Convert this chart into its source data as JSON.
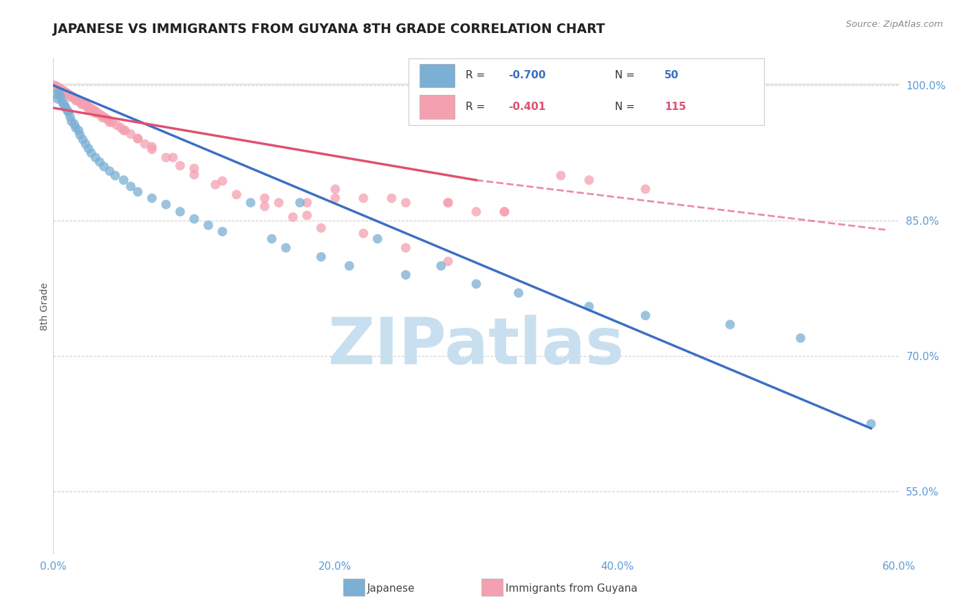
{
  "title": "JAPANESE VS IMMIGRANTS FROM GUYANA 8TH GRADE CORRELATION CHART",
  "source": "Source: ZipAtlas.com",
  "ylabel": "8th Grade",
  "xlim": [
    0.0,
    0.6
  ],
  "ylim": [
    0.48,
    1.03
  ],
  "yticks_right": [
    1.0,
    0.85,
    0.7,
    0.55
  ],
  "xticks": [
    0.0,
    0.2,
    0.4,
    0.6
  ],
  "blue_R": "-0.700",
  "blue_N": "50",
  "pink_R": "-0.401",
  "pink_N": "115",
  "blue_color": "#7bafd4",
  "pink_color": "#f4a0b0",
  "blue_line_color": "#3a6fc4",
  "pink_line_color": "#e05070",
  "watermark": "ZIPatlas",
  "watermark_color": "#c8dff0",
  "blue_line_x0": 0.0,
  "blue_line_y0": 1.0,
  "blue_line_x1": 0.58,
  "blue_line_y1": 0.62,
  "pink_line_solid_x0": 0.0,
  "pink_line_solid_y0": 0.975,
  "pink_line_solid_x1": 0.3,
  "pink_line_solid_y1": 0.895,
  "pink_line_dash_x0": 0.3,
  "pink_line_dash_y0": 0.895,
  "pink_line_dash_x1": 0.59,
  "pink_line_dash_y1": 0.84,
  "blue_scatter_x": [
    0.002,
    0.003,
    0.004,
    0.005,
    0.006,
    0.007,
    0.008,
    0.009,
    0.01,
    0.011,
    0.012,
    0.013,
    0.015,
    0.016,
    0.018,
    0.019,
    0.021,
    0.023,
    0.025,
    0.027,
    0.03,
    0.033,
    0.036,
    0.04,
    0.044,
    0.05,
    0.055,
    0.06,
    0.07,
    0.08,
    0.09,
    0.1,
    0.11,
    0.12,
    0.14,
    0.155,
    0.165,
    0.175,
    0.19,
    0.21,
    0.23,
    0.25,
    0.275,
    0.3,
    0.33,
    0.38,
    0.42,
    0.48,
    0.53,
    0.58
  ],
  "blue_scatter_y": [
    0.99,
    0.985,
    0.992,
    0.988,
    0.983,
    0.98,
    0.978,
    0.975,
    0.972,
    0.97,
    0.965,
    0.96,
    0.957,
    0.953,
    0.95,
    0.945,
    0.94,
    0.935,
    0.93,
    0.925,
    0.92,
    0.915,
    0.91,
    0.905,
    0.9,
    0.895,
    0.888,
    0.882,
    0.875,
    0.868,
    0.86,
    0.852,
    0.845,
    0.838,
    0.87,
    0.83,
    0.82,
    0.87,
    0.81,
    0.8,
    0.83,
    0.79,
    0.8,
    0.78,
    0.77,
    0.755,
    0.745,
    0.735,
    0.72,
    0.625
  ],
  "pink_scatter_x": [
    0.001,
    0.002,
    0.003,
    0.004,
    0.005,
    0.006,
    0.007,
    0.008,
    0.009,
    0.01,
    0.011,
    0.012,
    0.013,
    0.014,
    0.015,
    0.016,
    0.017,
    0.018,
    0.019,
    0.02,
    0.021,
    0.022,
    0.023,
    0.024,
    0.025,
    0.026,
    0.027,
    0.028,
    0.029,
    0.03,
    0.002,
    0.003,
    0.004,
    0.005,
    0.006,
    0.007,
    0.008,
    0.009,
    0.01,
    0.011,
    0.012,
    0.013,
    0.014,
    0.015,
    0.016,
    0.017,
    0.018,
    0.019,
    0.02,
    0.021,
    0.022,
    0.023,
    0.024,
    0.025,
    0.026,
    0.027,
    0.028,
    0.029,
    0.03,
    0.032,
    0.034,
    0.036,
    0.038,
    0.04,
    0.042,
    0.045,
    0.048,
    0.051,
    0.055,
    0.06,
    0.065,
    0.07,
    0.08,
    0.09,
    0.1,
    0.115,
    0.13,
    0.15,
    0.17,
    0.19,
    0.005,
    0.008,
    0.012,
    0.016,
    0.02,
    0.025,
    0.03,
    0.035,
    0.04,
    0.05,
    0.06,
    0.07,
    0.085,
    0.1,
    0.12,
    0.15,
    0.18,
    0.22,
    0.25,
    0.28,
    0.18,
    0.28,
    0.32,
    0.36,
    0.2,
    0.24,
    0.3,
    0.32,
    0.38,
    0.42,
    0.16,
    0.2,
    0.25,
    0.28,
    0.22
  ],
  "pink_scatter_y": [
    1.0,
    0.999,
    0.998,
    0.997,
    0.996,
    0.995,
    0.994,
    0.993,
    0.992,
    0.991,
    0.99,
    0.989,
    0.988,
    0.987,
    0.986,
    0.985,
    0.984,
    0.983,
    0.982,
    0.981,
    0.98,
    0.979,
    0.978,
    0.977,
    0.976,
    0.975,
    0.974,
    0.973,
    0.972,
    0.971,
    0.999,
    0.998,
    0.997,
    0.996,
    0.995,
    0.994,
    0.993,
    0.992,
    0.991,
    0.99,
    0.989,
    0.988,
    0.987,
    0.986,
    0.985,
    0.984,
    0.983,
    0.982,
    0.981,
    0.98,
    0.979,
    0.978,
    0.977,
    0.976,
    0.975,
    0.974,
    0.973,
    0.972,
    0.971,
    0.969,
    0.967,
    0.965,
    0.963,
    0.961,
    0.959,
    0.956,
    0.953,
    0.95,
    0.946,
    0.941,
    0.935,
    0.929,
    0.92,
    0.911,
    0.901,
    0.89,
    0.879,
    0.866,
    0.854,
    0.842,
    0.995,
    0.991,
    0.987,
    0.983,
    0.979,
    0.974,
    0.969,
    0.964,
    0.959,
    0.95,
    0.941,
    0.932,
    0.92,
    0.908,
    0.894,
    0.875,
    0.856,
    0.836,
    0.82,
    0.805,
    0.87,
    0.87,
    0.86,
    0.9,
    0.885,
    0.875,
    0.86,
    0.86,
    0.895,
    0.885,
    0.87,
    0.875,
    0.87,
    0.87,
    0.875
  ]
}
